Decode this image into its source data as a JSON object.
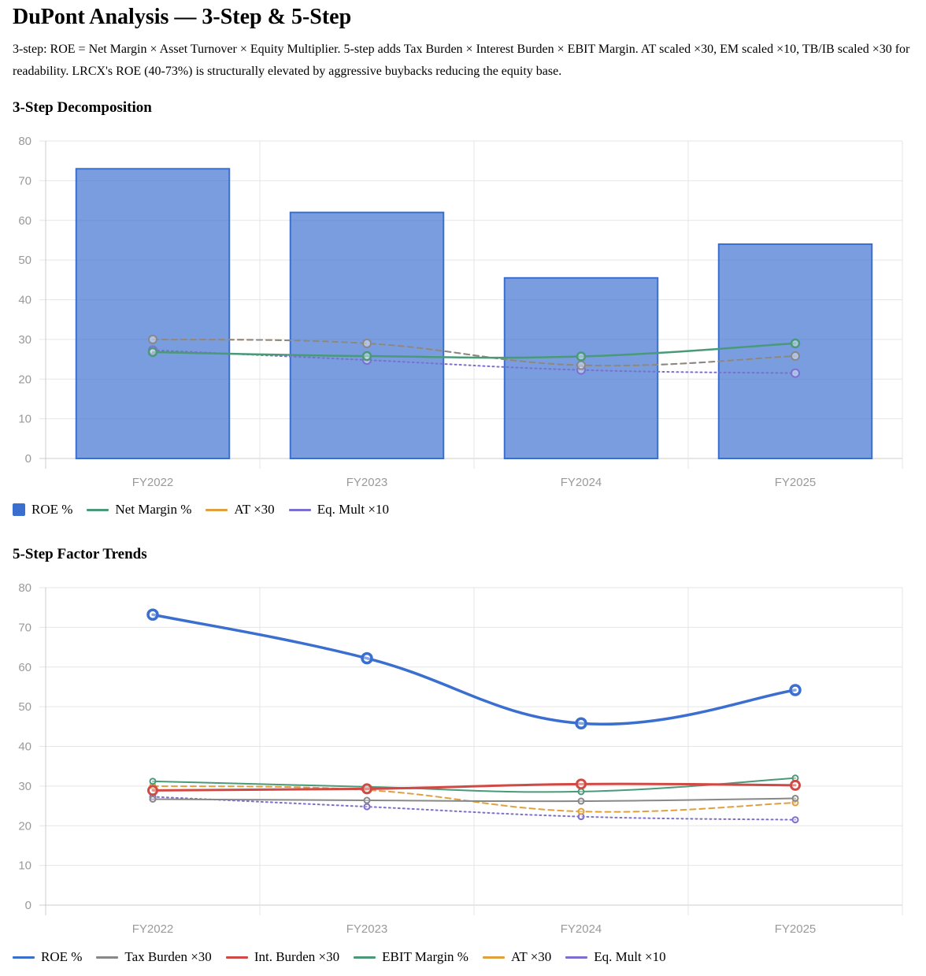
{
  "title": "DuPont Analysis — 3-Step & 5-Step",
  "description": "3-step: ROE = Net Margin × Asset Turnover × Equity Multiplier. 5-step adds Tax Burden × Interest Burden × EBIT Margin. AT scaled ×30, EM scaled ×10, TB/IB scaled ×30 for readability. LRCX's ROE (40-73%) is structurally elevated by aggressive buybacks reducing the equity base.",
  "sections": {
    "three_step_title": "3-Step Decomposition",
    "five_step_title": "5-Step Factor Trends"
  },
  "chart_data": [
    {
      "type": "bar",
      "categories": [
        "FY2022",
        "FY2023",
        "FY2024",
        "FY2025"
      ],
      "ylim": [
        0,
        80
      ],
      "yticks": [
        0,
        10,
        20,
        30,
        40,
        50,
        60,
        70,
        80
      ],
      "grid": true,
      "legend_position": "bottom-left",
      "series": [
        {
          "name": "ROE %",
          "kind": "bar",
          "color": "#3a6fd0",
          "values": [
            73.0,
            62.0,
            45.5,
            54.0
          ]
        },
        {
          "name": "Net Margin %",
          "kind": "line",
          "style": "solid",
          "color": "#4a9a7a",
          "values": [
            26.8,
            25.8,
            25.7,
            29.0
          ]
        },
        {
          "name": "AT ×30",
          "kind": "line",
          "style": "dashed",
          "color": "#e0a040",
          "values": [
            30.0,
            29.0,
            23.5,
            25.8
          ]
        },
        {
          "name": "Eq. Mult ×10",
          "kind": "line",
          "style": "dotted",
          "color": "#7b6fd0",
          "values": [
            27.3,
            24.8,
            22.3,
            21.5
          ]
        }
      ],
      "overlay_line": {
        "color": "#888888",
        "style": "dashed",
        "values": [
          30.0,
          29.0,
          23.5,
          25.8
        ]
      }
    },
    {
      "type": "line",
      "categories": [
        "FY2022",
        "FY2023",
        "FY2024",
        "FY2025"
      ],
      "ylim": [
        0,
        80
      ],
      "yticks": [
        0,
        10,
        20,
        30,
        40,
        50,
        60,
        70,
        80
      ],
      "grid": true,
      "legend_position": "bottom-left",
      "series": [
        {
          "name": "ROE %",
          "style": "solid",
          "width": 3.5,
          "color": "#3a6fd0",
          "values": [
            73.2,
            62.2,
            45.8,
            54.2
          ]
        },
        {
          "name": "Tax Burden ×30",
          "style": "solid",
          "width": 2,
          "color": "#888888",
          "values": [
            26.7,
            26.4,
            26.2,
            26.9
          ]
        },
        {
          "name": "Int. Burden ×30",
          "style": "solid",
          "width": 3,
          "color": "#d04a45",
          "values": [
            28.9,
            29.3,
            30.5,
            30.2
          ]
        },
        {
          "name": "EBIT Margin %",
          "style": "solid",
          "width": 2,
          "color": "#4a9a7a",
          "values": [
            31.2,
            29.8,
            28.6,
            32.0
          ]
        },
        {
          "name": "AT ×30",
          "style": "dashed",
          "width": 2,
          "color": "#e0a040",
          "values": [
            30.0,
            29.0,
            23.6,
            25.8
          ]
        },
        {
          "name": "Eq. Mult ×10",
          "style": "dotted",
          "width": 2,
          "color": "#7b6fd0",
          "values": [
            27.3,
            24.8,
            22.3,
            21.5
          ]
        }
      ]
    }
  ]
}
